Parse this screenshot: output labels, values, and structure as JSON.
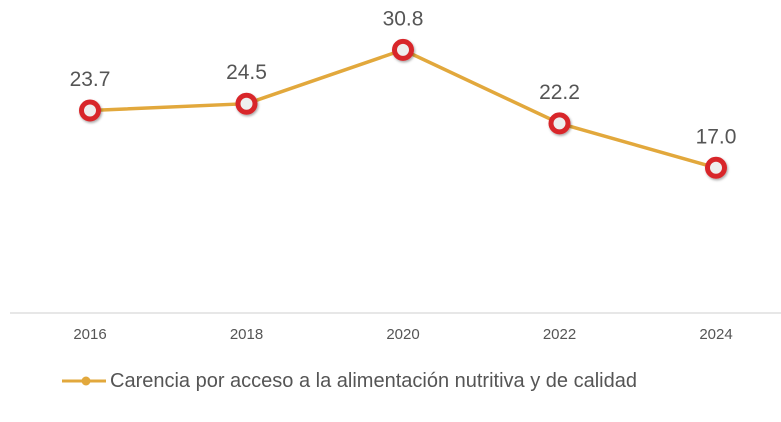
{
  "chart_data": {
    "type": "line",
    "categories": [
      "2016",
      "2018",
      "2020",
      "2022",
      "2024"
    ],
    "series": [
      {
        "name": "Carencia por acceso a la alimentación nutritiva y de calidad",
        "color": "#e2a83c",
        "marker_color": "#d8262b",
        "values": [
          23.7,
          24.5,
          30.8,
          22.2,
          17.0
        ],
        "value_labels": [
          "23.7",
          "24.5",
          "30.8",
          "22.2",
          "17.0"
        ]
      }
    ],
    "ylim": [
      0,
      35
    ],
    "legend": "bottom-left"
  }
}
